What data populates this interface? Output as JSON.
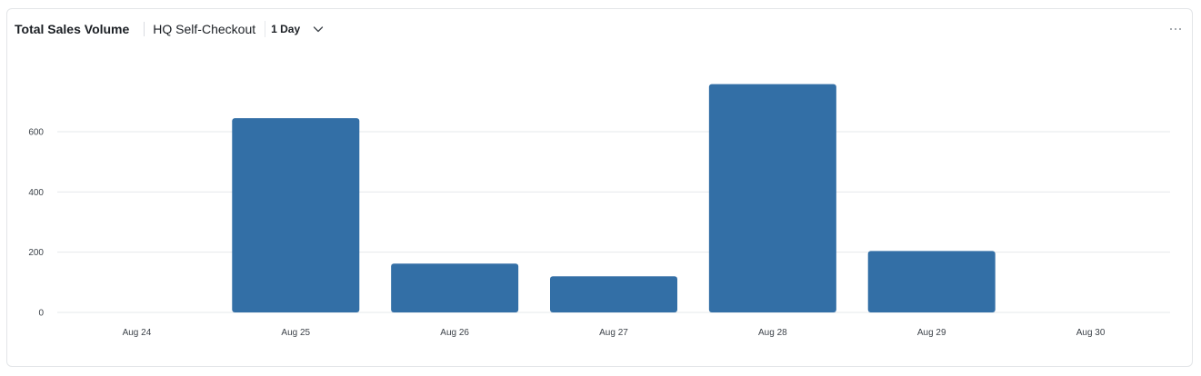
{
  "header": {
    "title": "Total Sales Volume",
    "store": "HQ Self-Checkout",
    "range": "1 Day"
  },
  "icons": {
    "range_dropdown": "chevron-down-icon",
    "more": "more-horizontal-icon"
  },
  "colors": {
    "bar": "#336fa6",
    "grid": "#e6e8eb",
    "text": "#1b1f24"
  },
  "chart_data": {
    "type": "bar",
    "title": "Total Sales Volume",
    "xlabel": "",
    "ylabel": "",
    "categories": [
      "Aug 24",
      "Aug 25",
      "Aug 26",
      "Aug 27",
      "Aug 28",
      "Aug 29",
      "Aug 30"
    ],
    "values": [
      0,
      645,
      162,
      120,
      758,
      204,
      0
    ],
    "yticks": [
      0,
      200,
      400,
      600
    ],
    "ylim": [
      0,
      800
    ],
    "grid": true,
    "legend": "none"
  }
}
